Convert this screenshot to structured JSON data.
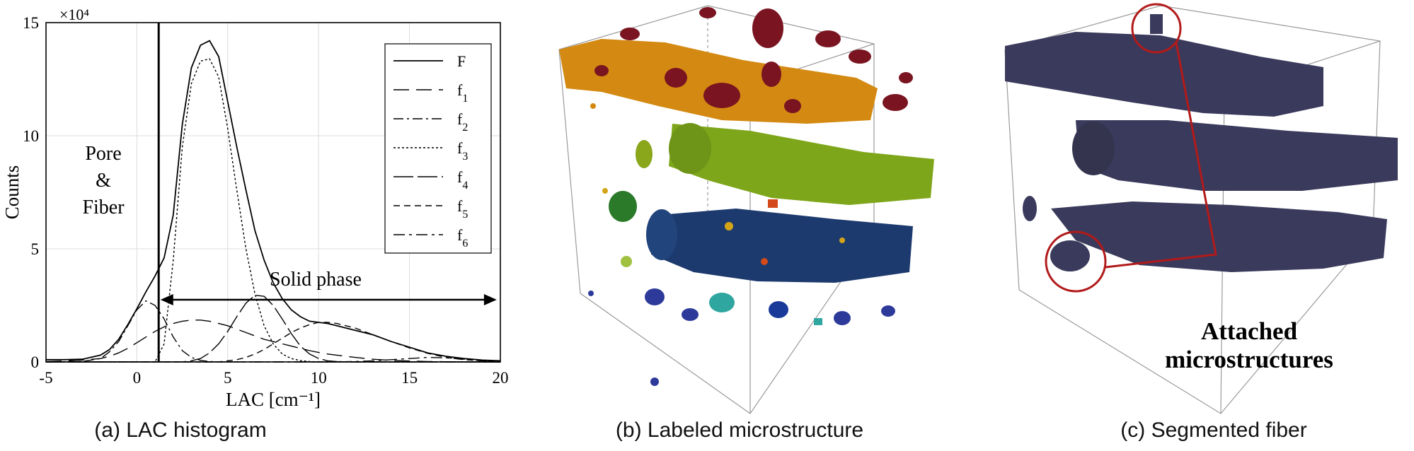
{
  "panels": {
    "a": {
      "caption": "(a) LAC histogram"
    },
    "b": {
      "caption": "(b) Labeled microstructure"
    },
    "c": {
      "caption": "(c) Segmented fiber",
      "annotation_line1": "Attached",
      "annotation_line2": "microstructures"
    }
  },
  "chart_data": {
    "type": "line",
    "xlabel": "LAC [cm⁻¹]",
    "ylabel": "Counts",
    "y_multiplier": "×10⁴",
    "xlim": [
      -5,
      20
    ],
    "ylim": [
      0,
      15
    ],
    "x_ticks": [
      -5,
      0,
      5,
      10,
      15,
      20
    ],
    "y_ticks": [
      0,
      5,
      10,
      15
    ],
    "grid": true,
    "legend_position": "top-right",
    "annotations": {
      "pore_line1": "Pore",
      "pore_line2": "&",
      "pore_line3": "Fiber",
      "solid_phase": "Solid phase"
    },
    "threshold_x": 1.2,
    "solid_arrow": {
      "from": 1.3,
      "to": 19.8,
      "y": 2.75
    },
    "x": [
      -5,
      -4,
      -3,
      -2,
      -1.5,
      -1,
      -0.5,
      0,
      0.5,
      1,
      1.5,
      2,
      2.5,
      3,
      3.5,
      4,
      4.5,
      5,
      5.5,
      6,
      6.5,
      7,
      7.5,
      8,
      8.5,
      9,
      9.5,
      10,
      10.5,
      11,
      12,
      13,
      14,
      15,
      16,
      17,
      18,
      19,
      20
    ],
    "series": [
      {
        "name": "F",
        "values": [
          0.1,
          0.1,
          0.12,
          0.3,
          0.55,
          1.0,
          1.65,
          2.35,
          3.1,
          3.8,
          4.6,
          6.5,
          10.5,
          13.0,
          14.0,
          14.2,
          13.5,
          11.5,
          9.5,
          7.6,
          5.8,
          4.5,
          3.5,
          2.8,
          2.3,
          2.0,
          1.8,
          1.75,
          1.7,
          1.6,
          1.4,
          1.2,
          0.9,
          0.65,
          0.4,
          0.25,
          0.15,
          0.08,
          0.05
        ]
      },
      {
        "name": "f1",
        "values": [
          0.02,
          0.04,
          0.08,
          0.15,
          0.25,
          0.4,
          0.6,
          0.85,
          1.1,
          1.35,
          1.55,
          1.7,
          1.8,
          1.85,
          1.85,
          1.8,
          1.7,
          1.6,
          1.45,
          1.3,
          1.15,
          1.0,
          0.9,
          0.8,
          0.7,
          0.6,
          0.5,
          0.42,
          0.35,
          0.3,
          0.2,
          0.12,
          0.07,
          0.04,
          0.02,
          0.01,
          0,
          0,
          0
        ]
      },
      {
        "name": "f2",
        "values": [
          0,
          0,
          0.02,
          0.15,
          0.45,
          0.9,
          1.6,
          2.3,
          2.7,
          2.5,
          1.9,
          1.1,
          0.5,
          0.2,
          0.07,
          0.02,
          0,
          0,
          0,
          0,
          0,
          0,
          0,
          0,
          0,
          0,
          0,
          0,
          0,
          0,
          0,
          0,
          0,
          0,
          0,
          0,
          0,
          0,
          0
        ]
      },
      {
        "name": "f3",
        "values": [
          0,
          0,
          0,
          0,
          0,
          0,
          0,
          0,
          0,
          0,
          0.8,
          4.5,
          9.5,
          12.3,
          13.3,
          13.4,
          12.6,
          10.3,
          7.6,
          5.0,
          3.0,
          1.6,
          0.8,
          0.35,
          0.15,
          0.06,
          0.02,
          0,
          0,
          0,
          0,
          0,
          0,
          0,
          0,
          0,
          0,
          0,
          0
        ]
      },
      {
        "name": "f4",
        "values": [
          0,
          0,
          0,
          0,
          0,
          0,
          0,
          0,
          0,
          0,
          0,
          0,
          0,
          0.05,
          0.15,
          0.4,
          0.8,
          1.35,
          2.0,
          2.6,
          2.95,
          2.9,
          2.5,
          1.9,
          1.25,
          0.7,
          0.35,
          0.15,
          0.05,
          0.02,
          0,
          0,
          0,
          0,
          0,
          0,
          0,
          0,
          0
        ]
      },
      {
        "name": "f5",
        "values": [
          0,
          0,
          0,
          0,
          0,
          0,
          0,
          0,
          0,
          0,
          0,
          0,
          0,
          0,
          0,
          0,
          0,
          0.05,
          0.1,
          0.2,
          0.35,
          0.55,
          0.8,
          1.05,
          1.3,
          1.5,
          1.65,
          1.75,
          1.75,
          1.7,
          1.5,
          1.2,
          0.9,
          0.62,
          0.38,
          0.2,
          0.1,
          0.05,
          0.02
        ]
      },
      {
        "name": "f6",
        "values": [
          0,
          0,
          0,
          0,
          0,
          0,
          0,
          0,
          0,
          0,
          0,
          0,
          0,
          0,
          0,
          0,
          0,
          0,
          0,
          0,
          0,
          0,
          0,
          0,
          0,
          0,
          0,
          0,
          0,
          0,
          0.02,
          0.05,
          0.1,
          0.15,
          0.2,
          0.18,
          0.12,
          0.05,
          0.02
        ]
      }
    ]
  }
}
